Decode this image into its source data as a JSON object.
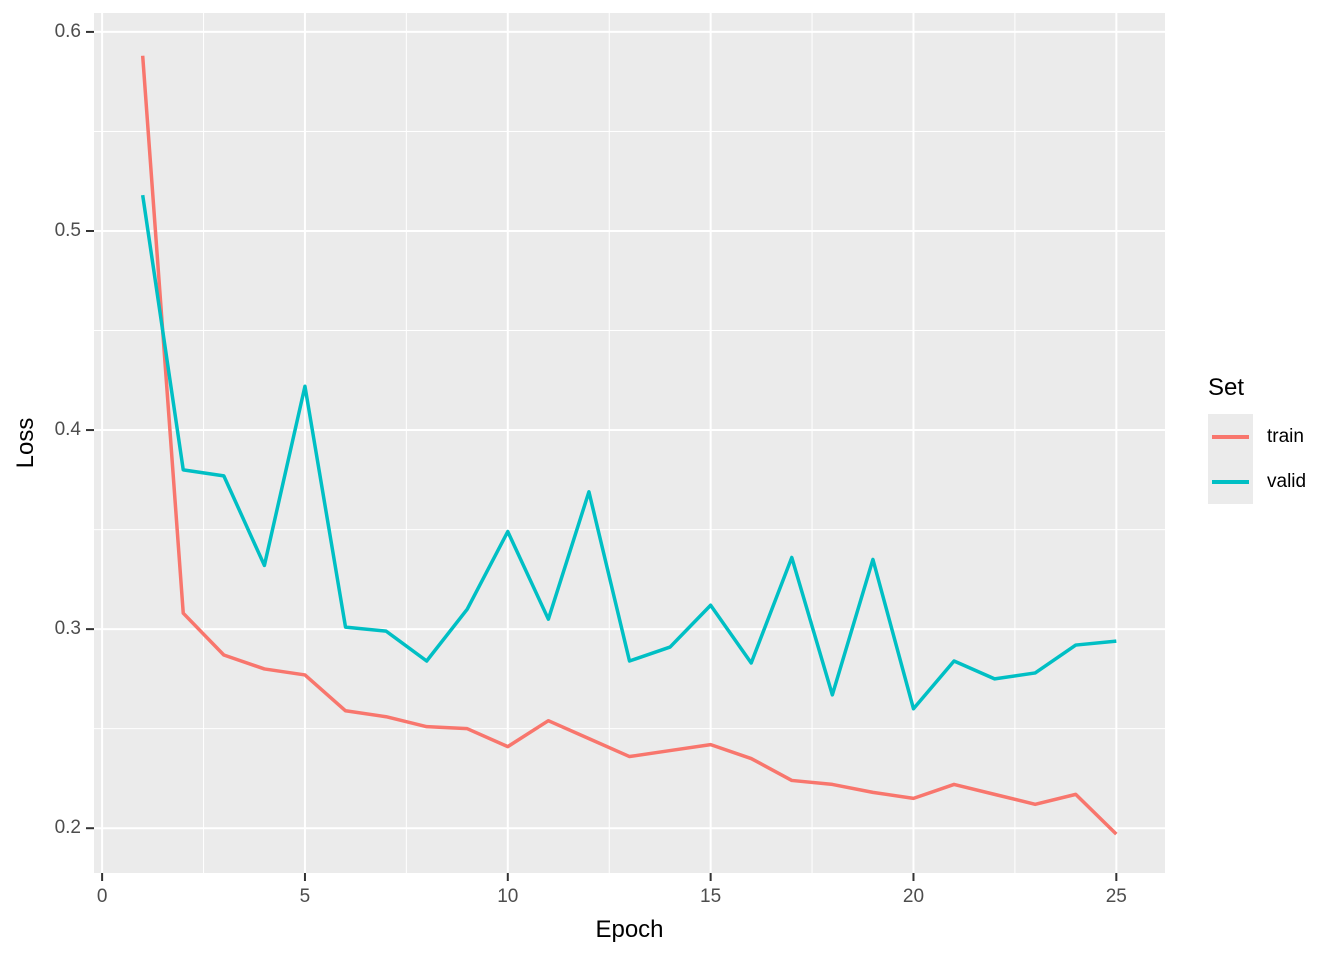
{
  "chart_data": {
    "type": "line",
    "title": "",
    "x_axis": {
      "title": "Epoch",
      "range": [
        -0.2,
        26.2
      ],
      "tick_values": [
        0,
        5,
        10,
        15,
        20,
        25
      ],
      "tick_labels": [
        "0",
        "5",
        "10",
        "15",
        "20",
        "25"
      ],
      "minor_tick_values": [
        2.5,
        7.5,
        12.5,
        17.5,
        22.5
      ]
    },
    "y_axis": {
      "title": "Loss",
      "range": [
        0.1775,
        0.6095
      ],
      "tick_values": [
        0.2,
        0.3,
        0.4,
        0.5,
        0.6
      ],
      "tick_labels": [
        "0.2",
        "0.3",
        "0.4",
        "0.5",
        "0.6"
      ],
      "minor_tick_values": [
        0.25,
        0.35,
        0.45,
        0.55
      ]
    },
    "x": [
      1,
      2,
      3,
      4,
      5,
      6,
      7,
      8,
      9,
      10,
      11,
      12,
      13,
      14,
      15,
      16,
      17,
      18,
      19,
      20,
      21,
      22,
      23,
      24,
      25
    ],
    "series": [
      {
        "name": "train",
        "color": "#F8766D",
        "values": [
          0.588,
          0.308,
          0.287,
          0.28,
          0.277,
          0.259,
          0.256,
          0.251,
          0.25,
          0.241,
          0.254,
          0.245,
          0.236,
          0.239,
          0.242,
          0.235,
          0.224,
          0.222,
          0.218,
          0.215,
          0.222,
          0.217,
          0.212,
          0.217,
          0.197
        ]
      },
      {
        "name": "valid",
        "color": "#00BFC4",
        "values": [
          0.518,
          0.38,
          0.377,
          0.332,
          0.422,
          0.301,
          0.299,
          0.284,
          0.31,
          0.349,
          0.305,
          0.369,
          0.284,
          0.291,
          0.312,
          0.283,
          0.336,
          0.267,
          0.335,
          0.26,
          0.284,
          0.275,
          0.278,
          0.292,
          0.294
        ]
      }
    ],
    "legend": {
      "title": "Set",
      "position": "right"
    },
    "grid": "on",
    "style": {
      "panel_background": "#EBEBEB",
      "grid_color": "#FFFFFF",
      "tick_label_color": "#4D4D4D",
      "tick_mark_color": "#333333",
      "axis_title_color": "#000000",
      "legend_key_background": "#EBEBEB"
    }
  }
}
